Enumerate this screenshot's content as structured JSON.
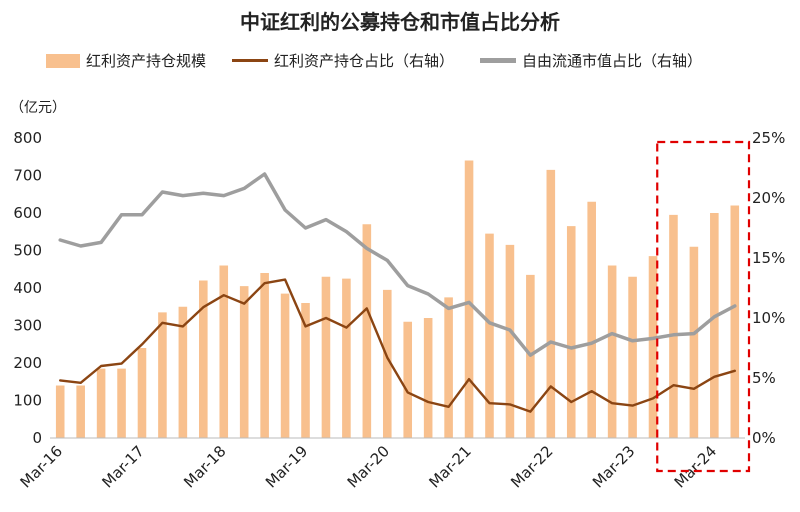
{
  "chart_data": {
    "type": "bar",
    "title": "中证红利的公募持仓和市值占比分析",
    "y_unit_label": "（亿元）",
    "ylim_left": [
      0,
      800
    ],
    "ylim_right": [
      0,
      25
    ],
    "yticks_left": [
      "0",
      "100",
      "200",
      "300",
      "400",
      "500",
      "600",
      "700",
      "800"
    ],
    "yticks_right": [
      "0%",
      "5%",
      "10%",
      "15%",
      "20%",
      "25%"
    ],
    "xtick_labels": [
      "Mar-16",
      "Mar-17",
      "Mar-18",
      "Mar-19",
      "Mar-20",
      "Mar-21",
      "Mar-22",
      "Mar-23",
      "Mar-24"
    ],
    "x": [
      "2016Q1",
      "2016Q2",
      "2016Q3",
      "2016Q4",
      "2017Q1",
      "2017Q2",
      "2017Q3",
      "2017Q4",
      "2018Q1",
      "2018Q2",
      "2018Q3",
      "2018Q4",
      "2019Q1",
      "2019Q2",
      "2019Q3",
      "2019Q4",
      "2020Q1",
      "2020Q2",
      "2020Q3",
      "2020Q4",
      "2021Q1",
      "2021Q2",
      "2021Q3",
      "2021Q4",
      "2022Q1",
      "2022Q2",
      "2022Q3",
      "2022Q4",
      "2023Q1",
      "2023Q2",
      "2023Q3",
      "2023Q4",
      "2024Q1",
      "2024Q2"
    ],
    "series": [
      {
        "name": "红利资产持仓规模",
        "type": "bar",
        "axis": "left",
        "color": "#F8C08E",
        "values": [
          140,
          140,
          185,
          185,
          240,
          335,
          350,
          420,
          460,
          405,
          440,
          385,
          360,
          430,
          425,
          570,
          395,
          310,
          320,
          375,
          740,
          545,
          515,
          435,
          715,
          565,
          630,
          460,
          430,
          485,
          595,
          510,
          600,
          620
        ]
      },
      {
        "name": "红利资产持仓占比（右轴）",
        "type": "line",
        "axis": "right",
        "color": "#8B4513",
        "values": [
          4.8,
          4.6,
          6.0,
          6.2,
          7.8,
          9.6,
          9.3,
          10.9,
          11.9,
          11.2,
          12.9,
          13.2,
          9.3,
          10.0,
          9.2,
          10.8,
          6.7,
          3.8,
          3.0,
          2.6,
          4.9,
          2.9,
          2.8,
          2.2,
          4.3,
          3.0,
          3.9,
          2.9,
          2.7,
          3.3,
          4.4,
          4.1,
          5.1,
          5.6
        ]
      },
      {
        "name": "自由流通市值占比（右轴）",
        "type": "line",
        "axis": "right",
        "color": "#9E9E9E",
        "values": [
          16.5,
          16.0,
          16.3,
          18.6,
          18.6,
          20.5,
          20.2,
          20.4,
          20.2,
          20.8,
          22.0,
          19.0,
          17.5,
          18.2,
          17.2,
          15.8,
          14.8,
          12.7,
          12.0,
          10.8,
          11.3,
          9.6,
          9.0,
          6.9,
          8.0,
          7.5,
          7.9,
          8.7,
          8.1,
          8.3,
          8.6,
          8.7,
          10.1,
          11.0
        ]
      }
    ],
    "highlight": {
      "start_index": 30,
      "end_index": 33,
      "style": "dashed-red-box",
      "color": "#E00000"
    },
    "grid": false,
    "legend_position": "top"
  }
}
